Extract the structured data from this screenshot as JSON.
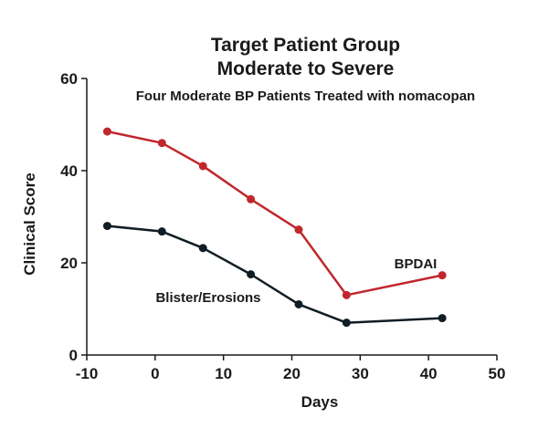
{
  "chart_data": {
    "type": "line",
    "title": "Target Patient Group",
    "subtitle": "Moderate to Severe",
    "subtitle2": "Four Moderate BP Patients Treated with nomacopan",
    "xlabel": "Days",
    "ylabel": "Clinical Score",
    "xlim": [
      -10,
      50
    ],
    "ylim": [
      0,
      60
    ],
    "xticks": [
      -10,
      0,
      10,
      20,
      30,
      40,
      50
    ],
    "yticks": [
      0,
      20,
      40,
      60
    ],
    "grid": false,
    "series": [
      {
        "name": "BPDAI",
        "color": "#c0272d",
        "x": [
          -7,
          1,
          7,
          14,
          21,
          28,
          42
        ],
        "values": [
          48.5,
          46,
          41,
          33.8,
          27.2,
          13,
          17.3
        ]
      },
      {
        "name": "Blister/Erosions",
        "color": "#111d24",
        "x": [
          -7,
          1,
          7,
          14,
          21,
          28,
          42
        ],
        "values": [
          28,
          26.8,
          23.2,
          17.5,
          11,
          7,
          8
        ]
      }
    ]
  }
}
